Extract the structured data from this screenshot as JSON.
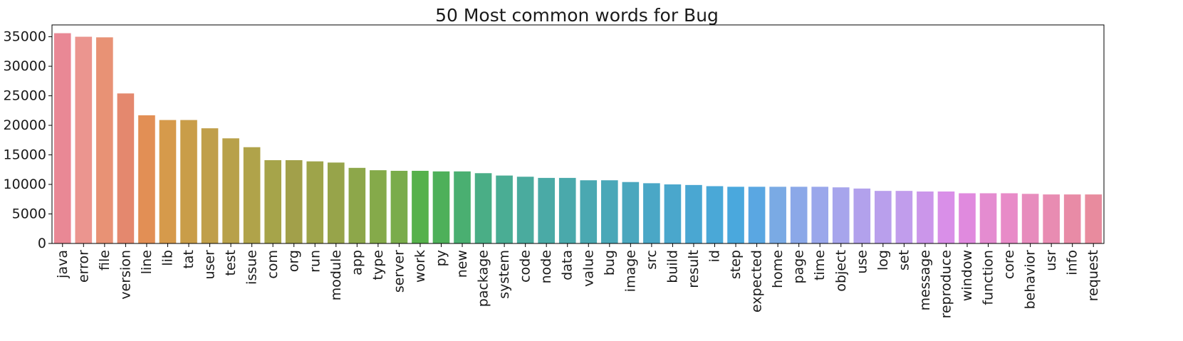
{
  "chart_data": {
    "type": "bar",
    "title": "50 Most common words for Bug",
    "xlabel": "",
    "ylabel": "",
    "ylim": [
      0,
      37000
    ],
    "yticks": [
      0,
      5000,
      10000,
      15000,
      20000,
      25000,
      30000,
      35000
    ],
    "grid": false,
    "categories": [
      "java",
      "error",
      "file",
      "version",
      "line",
      "lib",
      "tat",
      "user",
      "test",
      "issue",
      "com",
      "org",
      "run",
      "module",
      "app",
      "type",
      "server",
      "work",
      "py",
      "new",
      "package",
      "system",
      "code",
      "node",
      "data",
      "value",
      "bug",
      "image",
      "src",
      "build",
      "result",
      "id",
      "step",
      "expected",
      "home",
      "page",
      "time",
      "object",
      "use",
      "log",
      "set",
      "message",
      "reproduce",
      "window",
      "function",
      "core",
      "behavior",
      "usr",
      "info",
      "request"
    ],
    "values": [
      35600,
      35000,
      34900,
      25400,
      21700,
      20900,
      20900,
      19500,
      17800,
      16300,
      14100,
      14100,
      13900,
      13700,
      12800,
      12400,
      12300,
      12300,
      12200,
      12200,
      11900,
      11500,
      11300,
      11100,
      11100,
      10700,
      10700,
      10400,
      10200,
      10000,
      9900,
      9700,
      9600,
      9600,
      9600,
      9600,
      9600,
      9500,
      9300,
      8900,
      8900,
      8800,
      8800,
      8500,
      8500,
      8500,
      8400,
      8300,
      8300,
      8300
    ],
    "colors": [
      "#e98895",
      "#eb958f",
      "#e89275",
      "#e4886e",
      "#e28f55",
      "#d69a4b",
      "#c99d49",
      "#c09f4a",
      "#b8a14a",
      "#b0a34a",
      "#a6a44a",
      "#a2a04a",
      "#9ea44a",
      "#97a44a",
      "#8da74a",
      "#85aa4a",
      "#7aac4b",
      "#56b14b",
      "#4eb05a",
      "#4aaf71",
      "#4aae86",
      "#4aad94",
      "#4aab9e",
      "#4aaaa6",
      "#4aa9ab",
      "#4aa8b1",
      "#4aa8b8",
      "#4aa7be",
      "#4aa7c6",
      "#4aa7cc",
      "#4aa7d2",
      "#4aa8d7",
      "#4aa8dd",
      "#5aa7e2",
      "#7aaae4",
      "#8ba8e8",
      "#9aa7eb",
      "#a7a5ec",
      "#b2a1ec",
      "#b99fec",
      "#c19dec",
      "#cb96ea",
      "#d98fe8",
      "#e08ade",
      "#e48cd0",
      "#e88bc8",
      "#e78cbd",
      "#e88cb2",
      "#e88ba6",
      "#e88b9e"
    ]
  }
}
